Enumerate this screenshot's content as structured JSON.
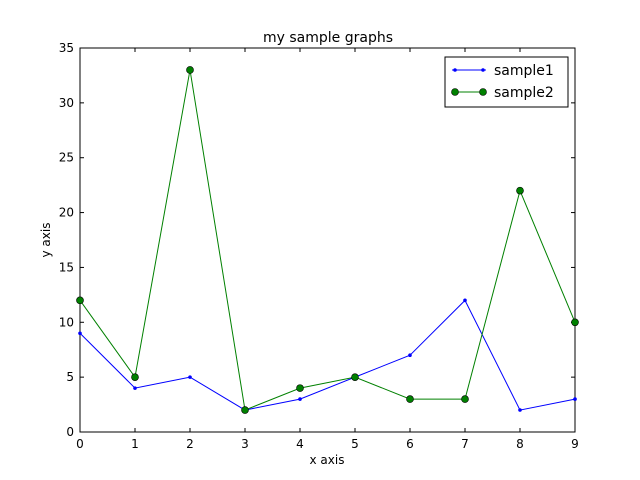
{
  "chart_data": {
    "type": "line",
    "title": "my sample graphs",
    "xlabel": "x axis",
    "ylabel": "y axis",
    "xlim": [
      0,
      9
    ],
    "ylim": [
      0,
      35
    ],
    "xticks": [
      0,
      1,
      2,
      3,
      4,
      5,
      6,
      7,
      8,
      9
    ],
    "yticks": [
      0,
      5,
      10,
      15,
      20,
      25,
      30,
      35
    ],
    "grid": false,
    "legend_position": "top-right",
    "x": [
      0,
      1,
      2,
      3,
      4,
      5,
      6,
      7,
      8,
      9
    ],
    "series": [
      {
        "name": "sample1",
        "color": "#0000ff",
        "marker": "small-dot",
        "values": [
          9,
          4,
          5,
          2,
          3,
          5,
          7,
          12,
          2,
          3
        ]
      },
      {
        "name": "sample2",
        "color": "#008000",
        "marker": "circle",
        "values": [
          12,
          5,
          33,
          2,
          4,
          5,
          3,
          3,
          22,
          10
        ]
      }
    ]
  }
}
